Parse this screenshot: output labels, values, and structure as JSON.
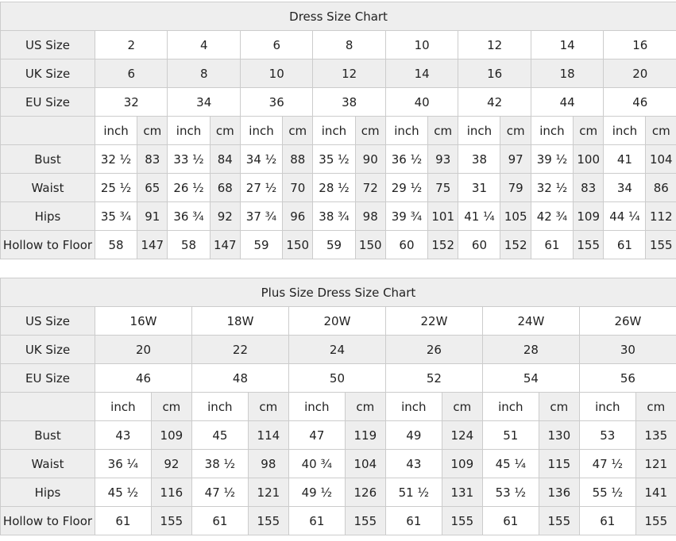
{
  "colors": {
    "header_bg": "#eeeeee",
    "shaded_cell_bg": "#eeeeee",
    "plain_cell_bg": "#ffffff",
    "border": "#cccccc",
    "text": "#222222",
    "title_text": "#000000"
  },
  "chart_data": [
    {
      "type": "table",
      "title": "Dress Size Chart",
      "unit_labels": [
        "inch",
        "cm"
      ],
      "size_rows": [
        {
          "label": "US Size",
          "values": [
            "2",
            "4",
            "6",
            "8",
            "10",
            "12",
            "14",
            "16"
          ]
        },
        {
          "label": "UK Size",
          "values": [
            "6",
            "8",
            "10",
            "12",
            "14",
            "16",
            "18",
            "20"
          ]
        },
        {
          "label": "EU Size",
          "values": [
            "32",
            "34",
            "36",
            "38",
            "40",
            "42",
            "44",
            "46"
          ]
        }
      ],
      "measure_rows": [
        {
          "label": "Bust",
          "pairs": [
            [
              "32 ½",
              "83"
            ],
            [
              "33 ½",
              "84"
            ],
            [
              "34 ½",
              "88"
            ],
            [
              "35 ½",
              "90"
            ],
            [
              "36 ½",
              "93"
            ],
            [
              "38",
              "97"
            ],
            [
              "39 ½",
              "100"
            ],
            [
              "41",
              "104"
            ]
          ]
        },
        {
          "label": "Waist",
          "pairs": [
            [
              "25 ½",
              "65"
            ],
            [
              "26 ½",
              "68"
            ],
            [
              "27 ½",
              "70"
            ],
            [
              "28 ½",
              "72"
            ],
            [
              "29 ½",
              "75"
            ],
            [
              "31",
              "79"
            ],
            [
              "32 ½",
              "83"
            ],
            [
              "34",
              "86"
            ]
          ]
        },
        {
          "label": "Hips",
          "pairs": [
            [
              "35 ¾",
              "91"
            ],
            [
              "36 ¾",
              "92"
            ],
            [
              "37 ¾",
              "96"
            ],
            [
              "38 ¾",
              "98"
            ],
            [
              "39 ¾",
              "101"
            ],
            [
              "41 ¼",
              "105"
            ],
            [
              "42 ¾",
              "109"
            ],
            [
              "44 ¼",
              "112"
            ]
          ]
        },
        {
          "label": "Hollow to Floor",
          "pairs": [
            [
              "58",
              "147"
            ],
            [
              "58",
              "147"
            ],
            [
              "59",
              "150"
            ],
            [
              "59",
              "150"
            ],
            [
              "60",
              "152"
            ],
            [
              "60",
              "152"
            ],
            [
              "61",
              "155"
            ],
            [
              "61",
              "155"
            ]
          ]
        }
      ]
    },
    {
      "type": "table",
      "title": "Plus Size Dress Size Chart",
      "unit_labels": [
        "inch",
        "cm"
      ],
      "size_rows": [
        {
          "label": "US Size",
          "values": [
            "16W",
            "18W",
            "20W",
            "22W",
            "24W",
            "26W"
          ]
        },
        {
          "label": "UK Size",
          "values": [
            "20",
            "22",
            "24",
            "26",
            "28",
            "30"
          ]
        },
        {
          "label": "EU Size",
          "values": [
            "46",
            "48",
            "50",
            "52",
            "54",
            "56"
          ]
        }
      ],
      "measure_rows": [
        {
          "label": "Bust",
          "pairs": [
            [
              "43",
              "109"
            ],
            [
              "45",
              "114"
            ],
            [
              "47",
              "119"
            ],
            [
              "49",
              "124"
            ],
            [
              "51",
              "130"
            ],
            [
              "53",
              "135"
            ]
          ]
        },
        {
          "label": "Waist",
          "pairs": [
            [
              "36 ¼",
              "92"
            ],
            [
              "38 ½",
              "98"
            ],
            [
              "40 ¾",
              "104"
            ],
            [
              "43",
              "109"
            ],
            [
              "45 ¼",
              "115"
            ],
            [
              "47 ½",
              "121"
            ]
          ]
        },
        {
          "label": "Hips",
          "pairs": [
            [
              "45 ½",
              "116"
            ],
            [
              "47 ½",
              "121"
            ],
            [
              "49 ½",
              "126"
            ],
            [
              "51 ½",
              "131"
            ],
            [
              "53 ½",
              "136"
            ],
            [
              "55 ½",
              "141"
            ]
          ]
        },
        {
          "label": "Hollow to Floor",
          "pairs": [
            [
              "61",
              "155"
            ],
            [
              "61",
              "155"
            ],
            [
              "61",
              "155"
            ],
            [
              "61",
              "155"
            ],
            [
              "61",
              "155"
            ],
            [
              "61",
              "155"
            ]
          ]
        }
      ]
    }
  ]
}
